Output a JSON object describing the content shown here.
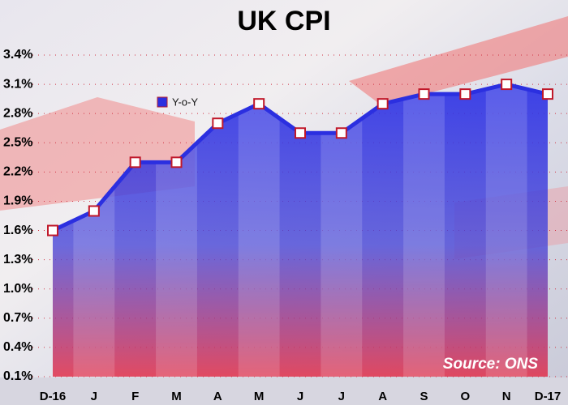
{
  "chart_data": {
    "type": "area",
    "title": "UK CPI",
    "categories": [
      "D-16",
      "J",
      "F",
      "M",
      "A",
      "M",
      "J",
      "J",
      "A",
      "S",
      "O",
      "N",
      "D-17"
    ],
    "series": [
      {
        "name": "Y-o-Y",
        "color": "#2b2fe0",
        "values": [
          1.6,
          1.8,
          2.3,
          2.3,
          2.7,
          2.9,
          2.6,
          2.6,
          2.9,
          3.0,
          3.0,
          3.1,
          3.0
        ]
      }
    ],
    "ylim": [
      0.1,
      3.4
    ],
    "yticks": [
      {
        "value": 0.1,
        "label": "0.1%"
      },
      {
        "value": 0.4,
        "label": "0.4%"
      },
      {
        "value": 0.7,
        "label": "0.7%"
      },
      {
        "value": 1.0,
        "label": "1.0%"
      },
      {
        "value": 1.3,
        "label": "1.3%"
      },
      {
        "value": 1.6,
        "label": "1.6%"
      },
      {
        "value": 1.9,
        "label": "1.9%"
      },
      {
        "value": 2.2,
        "label": "2.2%"
      },
      {
        "value": 2.5,
        "label": "2.5%"
      },
      {
        "value": 2.8,
        "label": "2.8%"
      },
      {
        "value": 3.1,
        "label": "3.1%"
      },
      {
        "value": 3.4,
        "label": "3.4%"
      }
    ],
    "grid": true,
    "annotation": "Source: ONS"
  }
}
